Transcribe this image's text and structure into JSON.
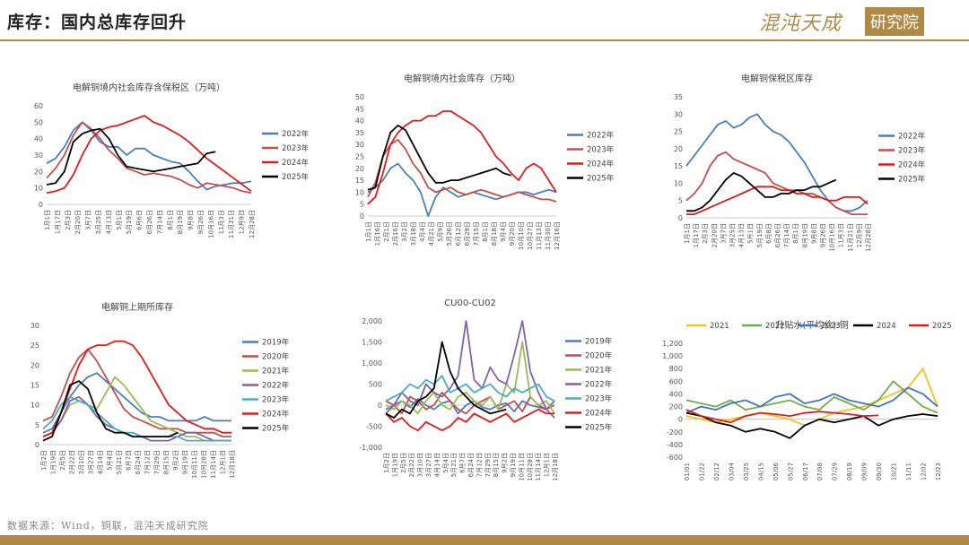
{
  "header": {
    "title": "库存：国内总库存回升"
  },
  "logo": {
    "text": "混沌天成",
    "box_text": "研究院"
  },
  "footer": {
    "source": "数据来源：Wind，铜联，混沌天成研究院"
  },
  "colors": {
    "accent": "#b08a45",
    "2019": "#4a7ebb",
    "2020": "#c0504d",
    "2021": "#9bbb59",
    "2022": "#8064a2",
    "2023": "#4bacc6",
    "2024": "#e31a1c",
    "2025": "#000000"
  },
  "chart_data": [
    {
      "type": "line",
      "title": "电解铜境内社会库存含保税区（万吨）",
      "ylim": [
        0,
        60
      ],
      "yticks": [
        0,
        10,
        20,
        30,
        40,
        50,
        60
      ],
      "xticks": [
        "1月1日",
        "1月17日",
        "2月3日",
        "2月20日",
        "3月7日",
        "3月25日",
        "4月13日",
        "5月1日",
        "5月19日",
        "6月6日",
        "6月26日",
        "7月14日",
        "8月1日",
        "8月19日",
        "9月8日",
        "9月26日",
        "10月16日",
        "11月3日",
        "11月21日",
        "12月9日",
        "12月28日"
      ],
      "legend_position": "right",
      "series": [
        {
          "name": "2022年",
          "color": "#4a7ebb",
          "values": [
            25,
            28,
            35,
            45,
            50,
            45,
            38,
            35,
            35,
            30,
            34,
            34,
            30,
            28,
            26,
            25,
            20,
            14,
            9,
            11,
            12,
            13,
            13,
            14
          ]
        },
        {
          "name": "2023年",
          "color": "#c0504d",
          "values": [
            16,
            22,
            30,
            42,
            50,
            46,
            40,
            33,
            28,
            22,
            20,
            18,
            19,
            18,
            17,
            15,
            12,
            10,
            13,
            12,
            11,
            10,
            8,
            7
          ]
        },
        {
          "name": "2024年",
          "color": "#e31a1c",
          "values": [
            7,
            8,
            10,
            18,
            30,
            40,
            45,
            47,
            48,
            50,
            52,
            54,
            50,
            48,
            45,
            42,
            38,
            33,
            28,
            24,
            20,
            16,
            12,
            8
          ]
        },
        {
          "name": "2025年",
          "color": "#000000",
          "values": [
            12,
            13,
            20,
            38,
            43,
            45,
            46,
            40,
            30,
            23,
            22,
            21,
            20,
            21,
            22,
            23,
            24,
            25,
            31,
            32
          ]
        }
      ]
    },
    {
      "type": "line",
      "title": "电解铜境内社会库存（万吨）",
      "ylim": [
        0,
        50
      ],
      "yticks": [
        0,
        5,
        10,
        15,
        20,
        25,
        30,
        35,
        40,
        45,
        50
      ],
      "xticks": [
        "1月1日",
        "1月16日",
        "2月1日",
        "2月16日",
        "3月2日",
        "3月18日",
        "4月4日",
        "4月21日",
        "5月9日",
        "5月26日",
        "6月12日",
        "6月29日",
        "7月15日",
        "8月1日",
        "8月18日",
        "9月4日",
        "9月20日",
        "10月10日",
        "10月27日",
        "11月13日",
        "11月30日",
        "12月16日"
      ],
      "legend_position": "right",
      "series": [
        {
          "name": "2022年",
          "color": "#4a7ebb",
          "values": [
            10,
            12,
            15,
            20,
            22,
            18,
            15,
            10,
            0,
            8,
            12,
            10,
            8,
            9,
            10,
            9,
            8,
            7,
            8,
            9,
            10,
            10,
            9,
            10,
            11,
            10
          ]
        },
        {
          "name": "2023年",
          "color": "#c0504d",
          "values": [
            8,
            14,
            25,
            30,
            32,
            28,
            22,
            18,
            12,
            10,
            11,
            12,
            10,
            9,
            10,
            11,
            10,
            9,
            8,
            9,
            10,
            9,
            8,
            7,
            7,
            6
          ]
        },
        {
          "name": "2024年",
          "color": "#e31a1c",
          "values": [
            5,
            8,
            18,
            30,
            35,
            38,
            40,
            40,
            42,
            42,
            44,
            44,
            42,
            40,
            38,
            35,
            30,
            25,
            22,
            18,
            15,
            20,
            22,
            20,
            15,
            10
          ]
        },
        {
          "name": "2025年",
          "color": "#000000",
          "values": [
            11,
            12,
            25,
            35,
            38,
            36,
            30,
            24,
            18,
            14,
            14,
            15,
            15,
            16,
            17,
            18,
            19,
            20,
            18,
            17
          ]
        }
      ]
    },
    {
      "type": "line",
      "title": "电解铜保税区库存",
      "ylim": [
        0,
        35
      ],
      "yticks": [
        0,
        5,
        10,
        15,
        20,
        25,
        30,
        35
      ],
      "xticks": [
        "1月1日",
        "1月17日",
        "2月3日",
        "2月20日",
        "3月7日",
        "3月25日",
        "4月13日",
        "5月1日",
        "5月19日",
        "6月8日",
        "6月26日",
        "7月14日",
        "8月1日",
        "8月19日",
        "9月8日",
        "9月26日",
        "10月16日",
        "11月3日",
        "11月21日",
        "12月9日",
        "12月28日"
      ],
      "legend_position": "right",
      "series": [
        {
          "name": "2022年",
          "color": "#4a7ebb",
          "values": [
            15,
            18,
            21,
            24,
            27,
            28,
            26,
            27,
            29,
            30,
            27,
            25,
            24,
            22,
            19,
            16,
            12,
            8,
            5,
            3,
            2,
            2,
            3,
            5
          ]
        },
        {
          "name": "2023年",
          "color": "#c0504d",
          "values": [
            5,
            7,
            10,
            15,
            18,
            19,
            17,
            16,
            15,
            14,
            13,
            10,
            9,
            8,
            8,
            7,
            7,
            6,
            5,
            3,
            2,
            1,
            1,
            1
          ]
        },
        {
          "name": "2024年",
          "color": "#e31a1c",
          "values": [
            1,
            1,
            2,
            3,
            4,
            5,
            6,
            7,
            8,
            9,
            9,
            9,
            8,
            8,
            7,
            7,
            6,
            6,
            5,
            5,
            6,
            6,
            6,
            4
          ]
        },
        {
          "name": "2025年",
          "color": "#000000",
          "values": [
            2,
            2,
            3,
            5,
            8,
            11,
            13,
            12,
            10,
            8,
            6,
            6,
            7,
            7,
            8,
            8,
            9,
            9,
            10,
            11
          ]
        }
      ]
    },
    {
      "type": "line",
      "title": "电解铜上期所库存",
      "ylim": [
        0,
        30
      ],
      "yticks": [
        0,
        5,
        10,
        15,
        20,
        25,
        30
      ],
      "xticks": [
        "1月2日",
        "1月19日",
        "2月5日",
        "2月22日",
        "3月10日",
        "3月27日",
        "4月14日",
        "5月4日",
        "5月21日",
        "6月7日",
        "6月24日",
        "7月12日",
        "7月29日",
        "8月15日",
        "9月2日",
        "9月19日",
        "10月11日",
        "10月28日",
        "11月14日",
        "12月1日",
        "12月18日"
      ],
      "legend_position": "right",
      "series": [
        {
          "name": "2019年",
          "color": "#4a7ebb",
          "values": [
            3,
            4,
            8,
            12,
            15,
            17,
            18,
            16,
            14,
            12,
            10,
            8,
            7,
            7,
            6,
            6,
            6,
            6,
            7,
            6,
            6,
            6
          ]
        },
        {
          "name": "2020年",
          "color": "#c0504d",
          "values": [
            6,
            7,
            12,
            18,
            22,
            24,
            21,
            17,
            13,
            9,
            7,
            6,
            5,
            4,
            4,
            4,
            3,
            3,
            3,
            3,
            2,
            2
          ]
        },
        {
          "name": "2021年",
          "color": "#9bbb59",
          "values": [
            2,
            3,
            6,
            10,
            11,
            10,
            9,
            13,
            17,
            15,
            12,
            9,
            6,
            5,
            4,
            3,
            2,
            2,
            1,
            1,
            1,
            1
          ]
        },
        {
          "name": "2022年",
          "color": "#8064a2",
          "values": [
            2,
            3,
            6,
            11,
            12,
            10,
            7,
            5,
            4,
            3,
            2,
            2,
            1,
            1,
            1,
            2,
            3,
            3,
            2,
            1,
            1,
            1
          ]
        },
        {
          "name": "2023年",
          "color": "#4bacc6",
          "values": [
            4,
            6,
            10,
            12,
            11,
            10,
            8,
            6,
            4,
            3,
            3,
            2,
            2,
            2,
            2,
            2,
            1,
            1,
            1,
            1,
            1,
            1
          ]
        },
        {
          "name": "2024年",
          "color": "#e31a1c",
          "values": [
            2,
            3,
            8,
            14,
            20,
            24,
            25,
            25,
            26,
            26,
            25,
            22,
            18,
            14,
            10,
            8,
            6,
            5,
            4,
            4,
            3,
            3
          ]
        },
        {
          "name": "2025年",
          "color": "#000000",
          "values": [
            1,
            2,
            8,
            15,
            16,
            14,
            8,
            4,
            3,
            3,
            2,
            2,
            2,
            2,
            2,
            3
          ]
        }
      ]
    },
    {
      "type": "line",
      "title": "CU00-CU02",
      "ylim": [
        -1000,
        2000
      ],
      "yticks": [
        -1000,
        -500,
        0,
        500,
        1000,
        1500,
        2000
      ],
      "xticks": [
        "1月2日",
        "1月19日",
        "2月5日",
        "2月22日",
        "3月10日",
        "3月27日",
        "4月14日",
        "5月4日",
        "5月21日",
        "6月7日",
        "6月24日",
        "7月12日",
        "7月29日",
        "8月15日",
        "9月2日",
        "9月19日",
        "10月11日",
        "10月28日",
        "11月14日",
        "12月1日",
        "12月18日"
      ],
      "legend_position": "right",
      "series": [
        {
          "name": "2019年",
          "color": "#4a7ebb",
          "values": [
            -100,
            0,
            100,
            -50,
            150,
            0,
            -100,
            50,
            100,
            -200,
            0,
            100,
            -50,
            -100,
            0,
            50,
            -150,
            100,
            0,
            -50,
            -100,
            0
          ]
        },
        {
          "name": "2020年",
          "color": "#c0504d",
          "values": [
            100,
            0,
            -200,
            200,
            100,
            -100,
            0,
            300,
            100,
            -100,
            -200,
            0,
            100,
            200,
            -100,
            0,
            100,
            -150,
            200,
            0,
            -100,
            100
          ]
        },
        {
          "name": "2021年",
          "color": "#9bbb59",
          "values": [
            0,
            -100,
            100,
            0,
            -200,
            100,
            300,
            0,
            -100,
            200,
            300,
            100,
            0,
            200,
            -100,
            500,
            300,
            1500,
            200,
            0,
            100,
            -200
          ]
        },
        {
          "name": "2022年",
          "color": "#8064a2",
          "values": [
            -200,
            0,
            300,
            100,
            0,
            500,
            300,
            200,
            400,
            700,
            2000,
            600,
            400,
            900,
            600,
            500,
            1200,
            2000,
            800,
            300,
            -100,
            -300
          ]
        },
        {
          "name": "2023年",
          "color": "#4bacc6",
          "values": [
            100,
            200,
            300,
            500,
            400,
            600,
            500,
            700,
            300,
            400,
            500,
            300,
            400,
            500,
            300,
            200,
            400,
            300,
            400,
            500,
            200,
            100
          ]
        },
        {
          "name": "2024年",
          "color": "#e31a1c",
          "values": [
            -200,
            -400,
            -300,
            -500,
            -600,
            -400,
            -500,
            -600,
            -500,
            -300,
            -400,
            -200,
            -300,
            -400,
            -300,
            -200,
            -400,
            -300,
            -200,
            -100,
            -200,
            -200
          ]
        },
        {
          "name": "2025年",
          "color": "#000000",
          "values": [
            -200,
            -300,
            -100,
            -200,
            100,
            200,
            400,
            1500,
            800,
            400,
            200,
            0,
            -100,
            -200,
            -150,
            -100
          ]
        }
      ]
    },
    {
      "type": "line",
      "title": "升贴水(平均价):铜",
      "ylim": [
        -600,
        1200
      ],
      "yticks": [
        -600,
        -400,
        -200,
        0,
        200,
        400,
        600,
        800,
        1000,
        1200
      ],
      "xticks": [
        "01/01",
        "01/22",
        "02/12",
        "03/04",
        "03/25",
        "04/15",
        "05/06",
        "05/27",
        "06/17",
        "07/08",
        "07/29",
        "08/19",
        "09/09",
        "09/30",
        "10/21",
        "11/11",
        "12/02",
        "12/23"
      ],
      "legend_position": "top",
      "series": [
        {
          "name": "2021",
          "color": "#f0c419",
          "values": [
            50,
            0,
            -50,
            0,
            50,
            100,
            50,
            0,
            -100,
            0,
            100,
            150,
            200,
            300,
            400,
            500,
            800,
            200
          ]
        },
        {
          "name": "2022",
          "color": "#70ad47",
          "values": [
            300,
            250,
            200,
            300,
            150,
            200,
            250,
            300,
            200,
            150,
            350,
            250,
            150,
            300,
            600,
            400,
            200,
            100
          ]
        },
        {
          "name": "2023",
          "color": "#4472c4",
          "values": [
            100,
            200,
            150,
            250,
            300,
            200,
            350,
            400,
            250,
            300,
            400,
            300,
            250,
            200,
            300,
            500,
            400,
            200
          ]
        },
        {
          "name": "2024",
          "color": "#000000",
          "values": [
            100,
            50,
            -50,
            -100,
            -200,
            -150,
            -200,
            -300,
            -100,
            0,
            -50,
            0,
            50,
            -100,
            0,
            50,
            80,
            50
          ]
        },
        {
          "name": "2025",
          "color": "#e31a1c",
          "values": [
            150,
            50,
            0,
            -50,
            50,
            100,
            80,
            50,
            100,
            120,
            100,
            80,
            50,
            60
          ]
        }
      ]
    }
  ]
}
